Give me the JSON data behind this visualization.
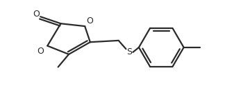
{
  "bg_color": "#ffffff",
  "line_color": "#2a2a2a",
  "line_width": 1.6,
  "fig_width": 3.24,
  "fig_height": 1.25,
  "dpi": 100,
  "xlim": [
    0,
    324
  ],
  "ylim": [
    0,
    125
  ]
}
